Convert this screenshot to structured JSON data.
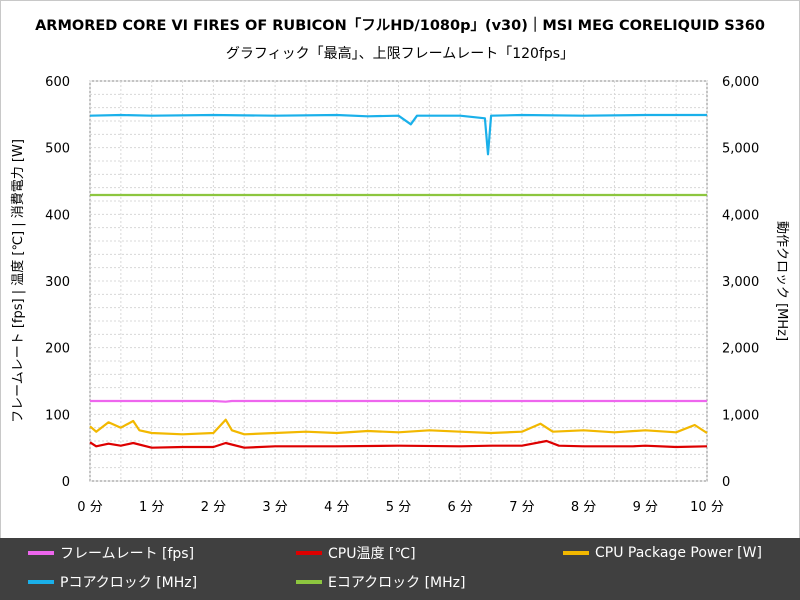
{
  "chart_data": {
    "type": "line",
    "title": "ARMORED CORE VI FIRES OF RUBICON「フルHD/1080p」(v30)｜MSI MEG CORELIQUID S360",
    "subtitle": "グラフィック「最高」、上限フレームレート「120fps」",
    "ylabel_left": "フレームレート [fps] | 温度 [℃] | 消費電力 [W]",
    "ylabel_right": "動作クロック [MHz]",
    "x_ticks": [
      "0 分",
      "1 分",
      "2 分",
      "3 分",
      "4 分",
      "5 分",
      "6 分",
      "7 分",
      "8 分",
      "9 分",
      "10 分"
    ],
    "xlim": [
      0,
      10
    ],
    "ylim_left": [
      0,
      600
    ],
    "ylim_right": [
      0,
      6000
    ],
    "y_ticks_left": [
      "0",
      "100",
      "200",
      "300",
      "400",
      "500",
      "600"
    ],
    "y_ticks_right": [
      "0",
      "1,000",
      "2,000",
      "3,000",
      "4,000",
      "5,000",
      "6,000"
    ],
    "grid": true,
    "legend_position": "bottom",
    "series": [
      {
        "name": "フレームレート [fps]",
        "axis": "left",
        "color": "#ee66ee",
        "x": [
          0,
          1,
          2,
          2.2,
          2.3,
          3,
          4,
          5,
          6,
          7,
          8,
          9,
          10
        ],
        "y": [
          120,
          120,
          120,
          119,
          120,
          120,
          120,
          120,
          120,
          120,
          120,
          120,
          120
        ]
      },
      {
        "name": "CPU温度 [℃]",
        "axis": "left",
        "color": "#dd0000",
        "x": [
          0,
          0.1,
          0.3,
          0.5,
          0.7,
          1,
          1.5,
          2,
          2.2,
          2.5,
          3,
          4,
          5,
          6,
          6.5,
          7,
          7.4,
          7.6,
          8,
          8.8,
          9,
          9.5,
          10
        ],
        "y": [
          58,
          52,
          56,
          53,
          57,
          50,
          51,
          51,
          57,
          50,
          52,
          52,
          53,
          52,
          53,
          53,
          60,
          53,
          52,
          52,
          53,
          51,
          52
        ]
      },
      {
        "name": "CPU Package  Power [W]",
        "axis": "left",
        "color": "#f2b800",
        "x": [
          0,
          0.1,
          0.3,
          0.5,
          0.7,
          0.8,
          1,
          1.5,
          2,
          2.2,
          2.3,
          2.5,
          3,
          3.5,
          4,
          4.5,
          5,
          5.5,
          6,
          6.5,
          7,
          7.3,
          7.5,
          8,
          8.5,
          9,
          9.5,
          9.8,
          10
        ],
        "y": [
          82,
          74,
          88,
          80,
          90,
          76,
          72,
          70,
          72,
          92,
          76,
          70,
          72,
          74,
          72,
          75,
          73,
          76,
          74,
          72,
          74,
          86,
          74,
          76,
          73,
          76,
          73,
          84,
          72
        ]
      },
      {
        "name": "Pコアクロック [MHz]",
        "axis": "right",
        "color": "#1ab0ea",
        "x": [
          0,
          0.5,
          1,
          2,
          3,
          4,
          4.5,
          5,
          5.2,
          5.3,
          6,
          6.4,
          6.45,
          6.5,
          7,
          8,
          9,
          10
        ],
        "y": [
          5480,
          5490,
          5480,
          5490,
          5480,
          5490,
          5470,
          5480,
          5350,
          5480,
          5480,
          5440,
          4900,
          5480,
          5490,
          5480,
          5490,
          5490
        ]
      },
      {
        "name": "Eコアクロック [MHz]",
        "axis": "right",
        "color": "#8dc63f",
        "x": [
          0,
          2,
          4,
          6,
          8,
          10
        ],
        "y": [
          4290,
          4290,
          4290,
          4290,
          4290,
          4290
        ]
      }
    ]
  }
}
